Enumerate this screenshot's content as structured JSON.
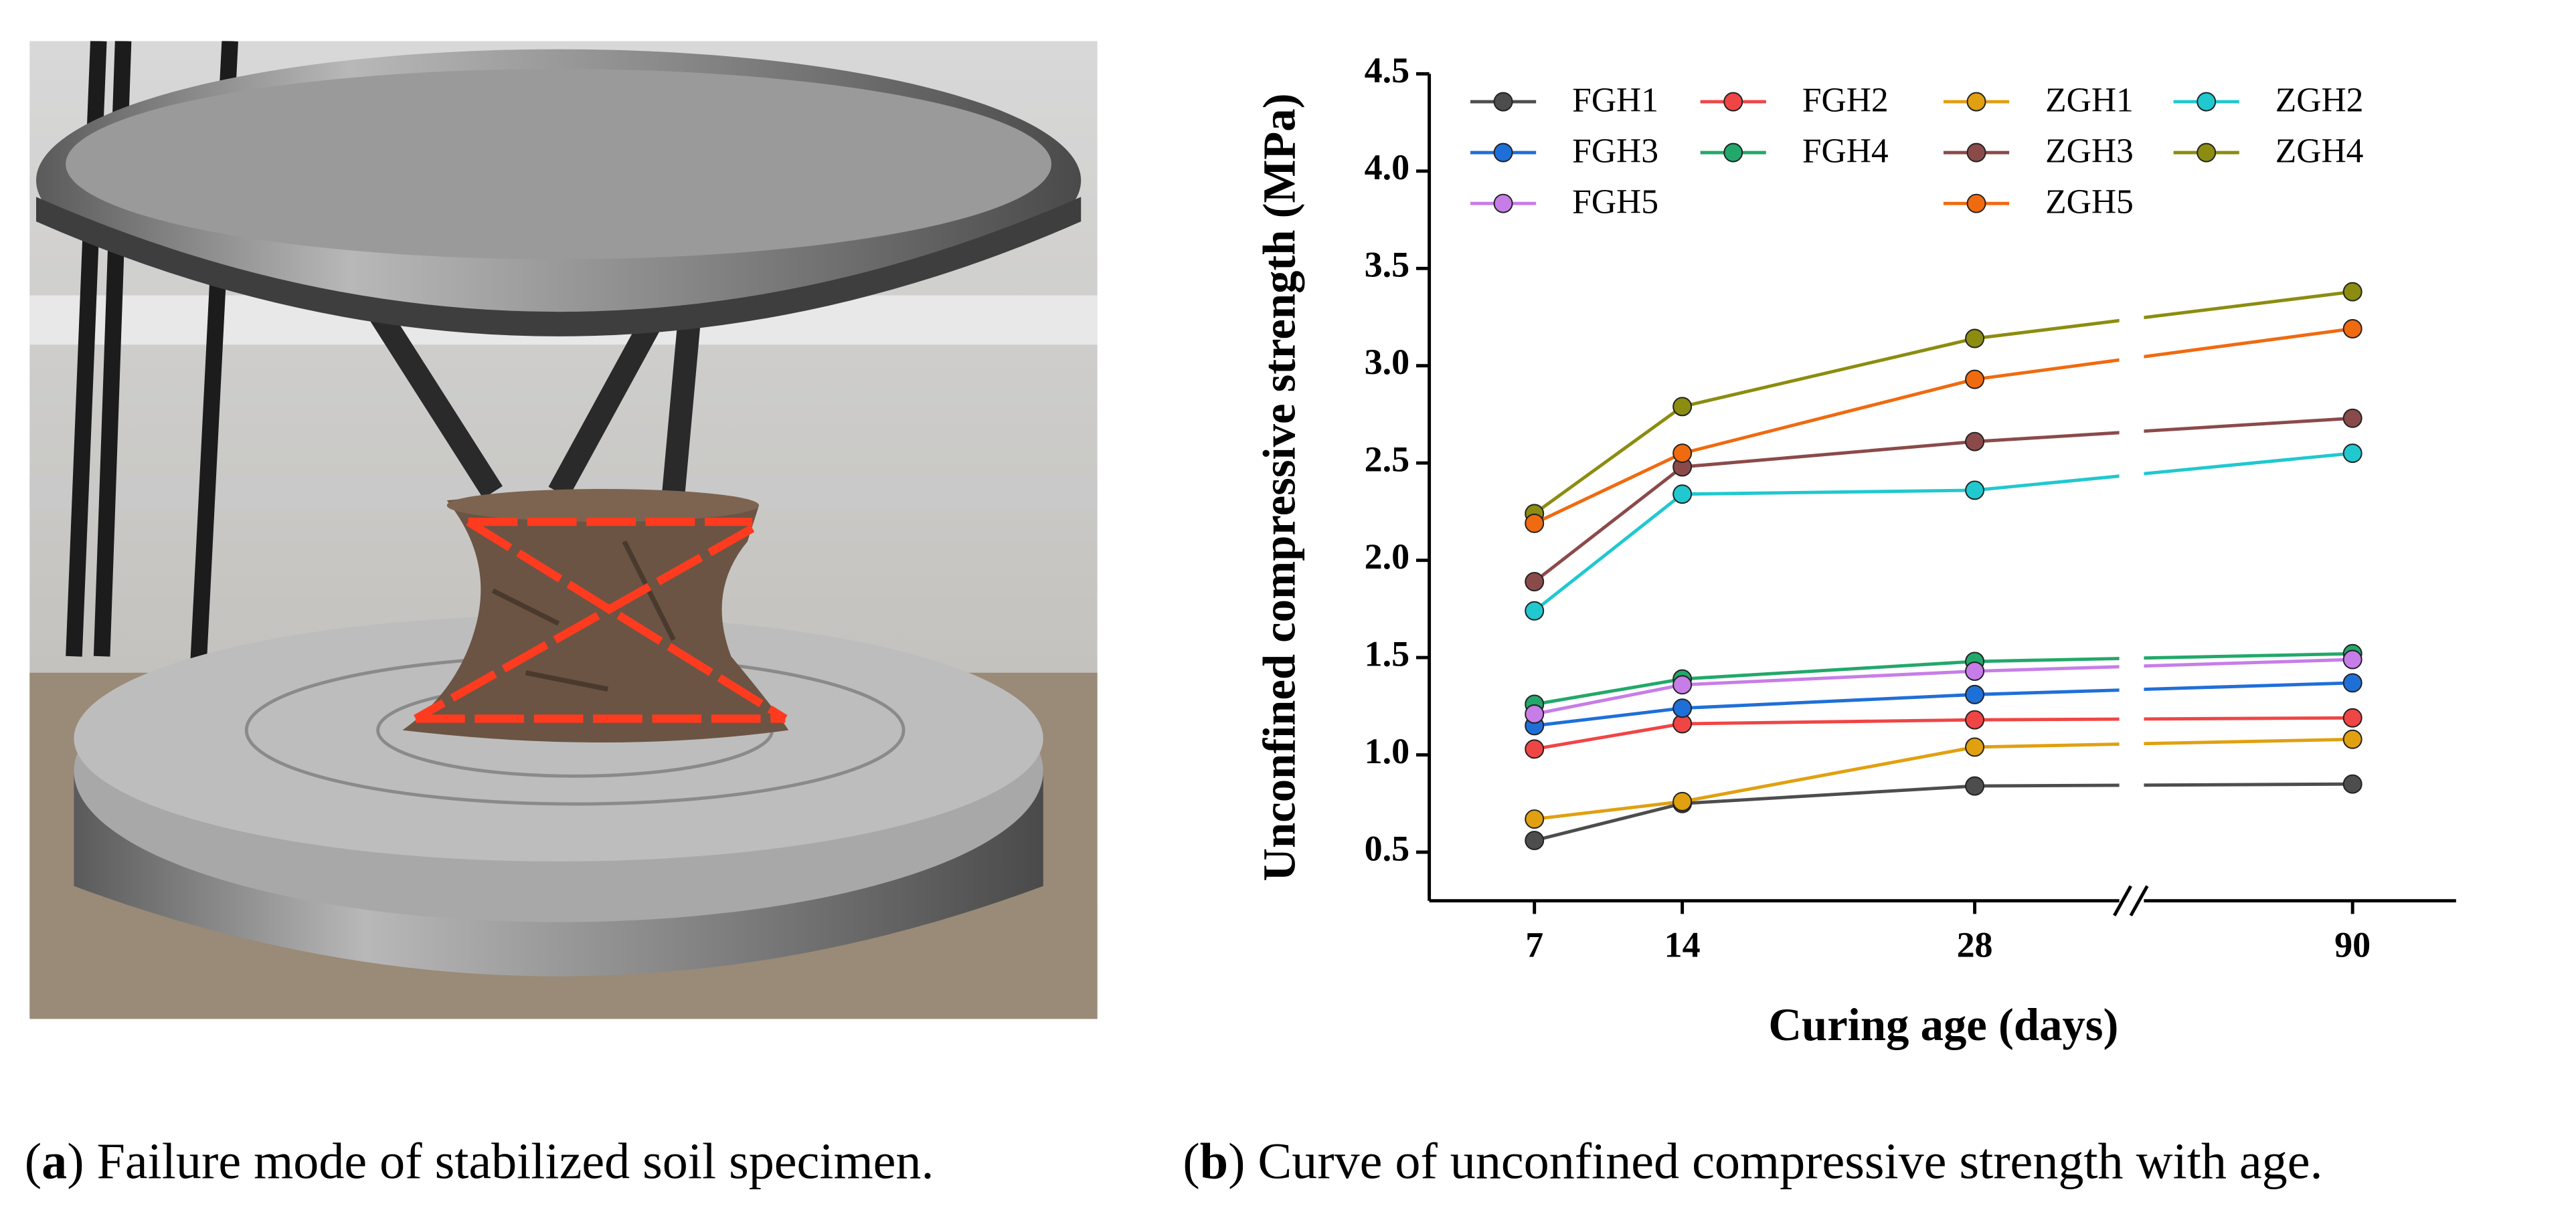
{
  "chart_data": {
    "type": "line",
    "x_label": "Curing age (days)",
    "y_label": "Unconfined compressive strength (MPa)",
    "categories": [
      "7",
      "14",
      "28",
      "90"
    ],
    "ylim": [
      0.25,
      4.5
    ],
    "yticks": [
      0.5,
      {
        "value": 1,
        "label": "1.0"
      },
      1.5,
      {
        "value": 2,
        "label": "2.0"
      },
      2.5,
      {
        "value": 3,
        "label": "3.0"
      },
      3.5,
      {
        "value": 4,
        "label": "4.0"
      },
      4.5
    ],
    "axis_break": true,
    "series": [
      {
        "name": "FGH1",
        "color": "#4d4d4d",
        "values": [
          0.56,
          0.75,
          0.84,
          0.85
        ]
      },
      {
        "name": "FGH2",
        "color": "#f04545",
        "values": [
          1.03,
          1.16,
          1.18,
          1.19
        ]
      },
      {
        "name": "FGH3",
        "color": "#1f6fd8",
        "values": [
          1.15,
          1.24,
          1.31,
          1.37
        ]
      },
      {
        "name": "FGH4",
        "color": "#22a86a",
        "values": [
          1.26,
          1.39,
          1.48,
          1.52
        ]
      },
      {
        "name": "FGH5",
        "color": "#c77de8",
        "values": [
          1.21,
          1.36,
          1.43,
          1.49
        ]
      },
      {
        "name": "ZGH1",
        "color": "#e0a010",
        "values": [
          0.67,
          0.76,
          1.04,
          1.08
        ]
      },
      {
        "name": "ZGH2",
        "color": "#20c8d0",
        "values": [
          1.74,
          2.34,
          2.36,
          2.55
        ]
      },
      {
        "name": "ZGH3",
        "color": "#8b4a4a",
        "values": [
          1.89,
          2.48,
          2.61,
          2.73
        ]
      },
      {
        "name": "ZGH4",
        "color": "#8c8c10",
        "values": [
          2.24,
          2.79,
          3.14,
          3.38
        ]
      },
      {
        "name": "ZGH5",
        "color": "#f06a10",
        "values": [
          2.19,
          2.55,
          2.93,
          3.19
        ]
      }
    ]
  },
  "captions": [
    [
      "(",
      "a",
      ") Failure mode of stabilized soil specimen."
    ],
    [
      "(",
      "b",
      ") Curve of unconfined compressive strength with age."
    ]
  ]
}
